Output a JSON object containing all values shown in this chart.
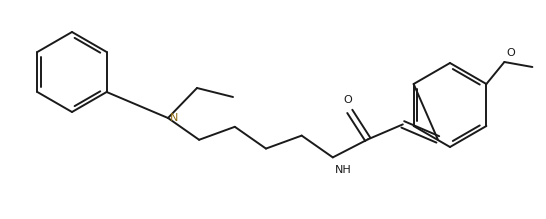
{
  "background_color": "#ffffff",
  "line_color": "#1a1a1a",
  "line_width": 1.4,
  "label_fontsize": 8.0,
  "fig_width": 5.46,
  "fig_height": 2.19,
  "dpi": 100,
  "labels": {
    "N": "N",
    "O_carbonyl": "O",
    "NH": "NH",
    "O_methoxy": "O"
  }
}
